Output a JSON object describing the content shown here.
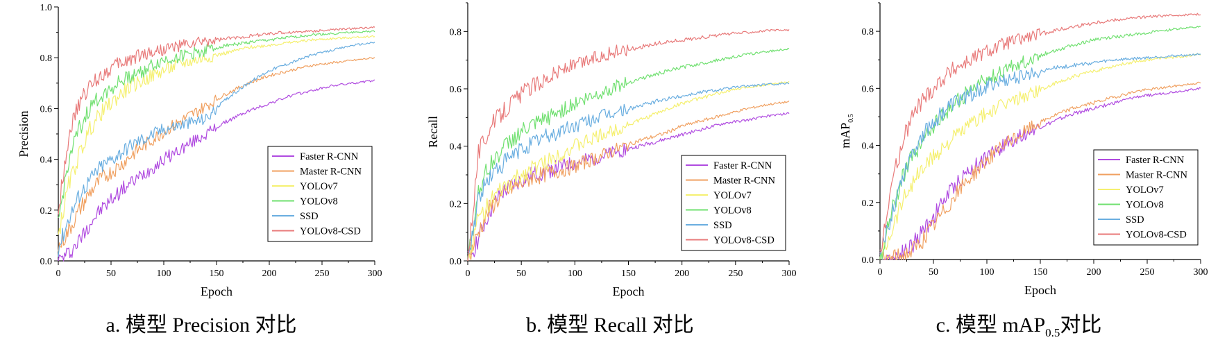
{
  "chart_data": [
    {
      "type": "line",
      "title": "",
      "xlabel": "Epoch",
      "ylabel": "Precision",
      "caption": "a. 模型 Precision 对比",
      "xlim": [
        0,
        300
      ],
      "ylim": [
        0,
        1.0
      ],
      "xticks": [
        "0",
        "50",
        "100",
        "150",
        "200",
        "250",
        "300"
      ],
      "yticks": [
        "0.0",
        "0.2",
        "0.4",
        "0.6",
        "0.8",
        "1.0"
      ],
      "legend_position": "bottom-right",
      "grid": false,
      "series": [
        {
          "name": "Faster R-CNN",
          "color": "#b04be0",
          "x": [
            0,
            10,
            20,
            30,
            40,
            50,
            60,
            70,
            80,
            90,
            100,
            120,
            140,
            160,
            180,
            200,
            220,
            240,
            260,
            280,
            300
          ],
          "y": [
            0.0,
            0.03,
            0.08,
            0.15,
            0.2,
            0.24,
            0.28,
            0.31,
            0.34,
            0.37,
            0.4,
            0.45,
            0.5,
            0.55,
            0.59,
            0.62,
            0.65,
            0.67,
            0.69,
            0.7,
            0.71
          ]
        },
        {
          "name": "Master R-CNN",
          "color": "#f0a060",
          "x": [
            0,
            10,
            20,
            30,
            40,
            50,
            60,
            70,
            80,
            90,
            100,
            120,
            140,
            160,
            180,
            200,
            220,
            240,
            260,
            280,
            300
          ],
          "y": [
            0.05,
            0.12,
            0.2,
            0.27,
            0.32,
            0.35,
            0.38,
            0.42,
            0.45,
            0.48,
            0.51,
            0.56,
            0.61,
            0.66,
            0.7,
            0.73,
            0.75,
            0.77,
            0.78,
            0.79,
            0.8
          ]
        },
        {
          "name": "YOLOv7",
          "color": "#f5f070",
          "x": [
            0,
            10,
            20,
            30,
            40,
            50,
            60,
            70,
            80,
            90,
            100,
            120,
            140,
            160,
            180,
            200,
            220,
            240,
            260,
            280,
            300
          ],
          "y": [
            0.1,
            0.3,
            0.42,
            0.52,
            0.58,
            0.62,
            0.66,
            0.69,
            0.71,
            0.73,
            0.75,
            0.78,
            0.8,
            0.82,
            0.84,
            0.85,
            0.86,
            0.87,
            0.875,
            0.88,
            0.885
          ]
        },
        {
          "name": "YOLOv8",
          "color": "#70e070",
          "x": [
            0,
            10,
            20,
            30,
            40,
            50,
            60,
            70,
            80,
            90,
            100,
            120,
            140,
            160,
            180,
            200,
            220,
            240,
            260,
            280,
            300
          ],
          "y": [
            0.15,
            0.4,
            0.52,
            0.6,
            0.65,
            0.68,
            0.71,
            0.73,
            0.75,
            0.77,
            0.79,
            0.81,
            0.83,
            0.85,
            0.86,
            0.87,
            0.88,
            0.89,
            0.895,
            0.9,
            0.905
          ]
        },
        {
          "name": "SSD",
          "color": "#6aaee0",
          "x": [
            0,
            10,
            20,
            30,
            40,
            50,
            60,
            70,
            80,
            90,
            100,
            120,
            140,
            160,
            180,
            200,
            220,
            240,
            260,
            280,
            300
          ],
          "y": [
            0.05,
            0.17,
            0.26,
            0.32,
            0.37,
            0.4,
            0.43,
            0.46,
            0.48,
            0.5,
            0.52,
            0.54,
            0.56,
            0.64,
            0.7,
            0.75,
            0.78,
            0.81,
            0.83,
            0.85,
            0.86
          ]
        },
        {
          "name": "YOLOv8-CSD",
          "color": "#e87a7a",
          "x": [
            0,
            10,
            20,
            30,
            40,
            50,
            60,
            70,
            80,
            90,
            100,
            120,
            140,
            160,
            180,
            200,
            220,
            240,
            260,
            280,
            300
          ],
          "y": [
            0.2,
            0.5,
            0.62,
            0.69,
            0.73,
            0.76,
            0.78,
            0.8,
            0.815,
            0.825,
            0.835,
            0.85,
            0.865,
            0.875,
            0.885,
            0.895,
            0.9,
            0.905,
            0.91,
            0.915,
            0.92
          ]
        }
      ]
    },
    {
      "type": "line",
      "title": "",
      "xlabel": "Epoch",
      "ylabel": "Recall",
      "caption": "b. 模型 Recall 对比",
      "xlim": [
        0,
        300
      ],
      "ylim": [
        0,
        0.9
      ],
      "xticks": [
        "0",
        "50",
        "100",
        "150",
        "200",
        "250",
        "300"
      ],
      "yticks": [
        "0.0",
        "0.2",
        "0.4",
        "0.6",
        "0.8"
      ],
      "legend_position": "bottom-right",
      "grid": false,
      "series": [
        {
          "name": "Faster R-CNN",
          "color": "#b04be0",
          "x": [
            0,
            10,
            20,
            30,
            40,
            50,
            60,
            70,
            80,
            90,
            100,
            120,
            140,
            160,
            180,
            200,
            220,
            240,
            260,
            280,
            300
          ],
          "y": [
            0.0,
            0.08,
            0.17,
            0.23,
            0.26,
            0.28,
            0.3,
            0.31,
            0.32,
            0.33,
            0.34,
            0.36,
            0.38,
            0.4,
            0.42,
            0.44,
            0.46,
            0.48,
            0.49,
            0.505,
            0.515
          ]
        },
        {
          "name": "Master R-CNN",
          "color": "#f0a060",
          "x": [
            0,
            10,
            20,
            30,
            40,
            50,
            60,
            70,
            80,
            90,
            100,
            120,
            140,
            160,
            180,
            200,
            220,
            240,
            260,
            280,
            300
          ],
          "y": [
            0.0,
            0.1,
            0.18,
            0.22,
            0.25,
            0.27,
            0.29,
            0.3,
            0.31,
            0.32,
            0.33,
            0.36,
            0.39,
            0.42,
            0.44,
            0.47,
            0.49,
            0.51,
            0.53,
            0.545,
            0.555
          ]
        },
        {
          "name": "YOLOv7",
          "color": "#f5f070",
          "x": [
            0,
            10,
            20,
            30,
            40,
            50,
            60,
            70,
            80,
            90,
            100,
            120,
            140,
            160,
            180,
            200,
            220,
            240,
            260,
            280,
            300
          ],
          "y": [
            0.0,
            0.15,
            0.2,
            0.24,
            0.27,
            0.3,
            0.32,
            0.34,
            0.36,
            0.38,
            0.4,
            0.43,
            0.46,
            0.49,
            0.52,
            0.55,
            0.57,
            0.59,
            0.605,
            0.615,
            0.625
          ]
        },
        {
          "name": "YOLOv8",
          "color": "#70e070",
          "x": [
            0,
            10,
            20,
            30,
            40,
            50,
            60,
            70,
            80,
            90,
            100,
            120,
            140,
            160,
            180,
            200,
            220,
            240,
            260,
            280,
            300
          ],
          "y": [
            0.0,
            0.25,
            0.33,
            0.38,
            0.42,
            0.45,
            0.47,
            0.49,
            0.51,
            0.53,
            0.55,
            0.58,
            0.61,
            0.635,
            0.655,
            0.675,
            0.69,
            0.705,
            0.72,
            0.73,
            0.74
          ]
        },
        {
          "name": "SSD",
          "color": "#6aaee0",
          "x": [
            0,
            10,
            20,
            30,
            40,
            50,
            60,
            70,
            80,
            90,
            100,
            120,
            140,
            160,
            180,
            200,
            220,
            240,
            260,
            280,
            300
          ],
          "y": [
            0.0,
            0.22,
            0.29,
            0.33,
            0.36,
            0.39,
            0.41,
            0.43,
            0.44,
            0.46,
            0.47,
            0.5,
            0.52,
            0.54,
            0.56,
            0.575,
            0.59,
            0.6,
            0.61,
            0.615,
            0.62
          ]
        },
        {
          "name": "YOLOv8-CSD",
          "color": "#e87a7a",
          "x": [
            0,
            10,
            20,
            30,
            40,
            50,
            60,
            70,
            80,
            90,
            100,
            120,
            140,
            160,
            180,
            200,
            220,
            240,
            260,
            280,
            300
          ],
          "y": [
            0.0,
            0.38,
            0.46,
            0.51,
            0.55,
            0.58,
            0.61,
            0.63,
            0.65,
            0.67,
            0.68,
            0.71,
            0.73,
            0.745,
            0.76,
            0.77,
            0.78,
            0.79,
            0.797,
            0.803,
            0.805
          ]
        }
      ]
    },
    {
      "type": "line",
      "title": "",
      "xlabel": "Epoch",
      "ylabel": "mAP",
      "ylabel_sub": "0.5",
      "caption": "c. 模型 mAP",
      "caption_sub": "0.5",
      "caption_suffix": "对比",
      "xlim": [
        0,
        300
      ],
      "ylim": [
        0,
        0.9
      ],
      "xticks": [
        "0",
        "50",
        "100",
        "150",
        "200",
        "250",
        "300"
      ],
      "yticks": [
        "0.0",
        "0.2",
        "0.4",
        "0.6",
        "0.8"
      ],
      "legend_position": "bottom-right",
      "grid": false,
      "series": [
        {
          "name": "Faster R-CNN",
          "color": "#b04be0",
          "x": [
            0,
            10,
            20,
            30,
            40,
            50,
            60,
            70,
            80,
            90,
            100,
            120,
            140,
            160,
            180,
            200,
            220,
            240,
            260,
            280,
            300
          ],
          "y": [
            0.0,
            0.0,
            0.02,
            0.05,
            0.1,
            0.15,
            0.21,
            0.26,
            0.3,
            0.33,
            0.36,
            0.41,
            0.45,
            0.48,
            0.51,
            0.53,
            0.55,
            0.57,
            0.58,
            0.59,
            0.6
          ]
        },
        {
          "name": "Master R-CNN",
          "color": "#f0a060",
          "x": [
            0,
            10,
            20,
            30,
            40,
            50,
            60,
            70,
            80,
            90,
            100,
            120,
            140,
            160,
            180,
            200,
            220,
            240,
            260,
            280,
            300
          ],
          "y": [
            0.0,
            0.0,
            0.01,
            0.03,
            0.07,
            0.12,
            0.17,
            0.22,
            0.27,
            0.31,
            0.35,
            0.41,
            0.46,
            0.5,
            0.53,
            0.55,
            0.57,
            0.59,
            0.6,
            0.61,
            0.62
          ]
        },
        {
          "name": "YOLOv7",
          "color": "#f5f070",
          "x": [
            0,
            10,
            20,
            30,
            40,
            50,
            60,
            70,
            80,
            90,
            100,
            120,
            140,
            160,
            180,
            200,
            220,
            240,
            260,
            280,
            300
          ],
          "y": [
            0.0,
            0.1,
            0.2,
            0.27,
            0.32,
            0.36,
            0.4,
            0.43,
            0.46,
            0.49,
            0.51,
            0.55,
            0.58,
            0.61,
            0.64,
            0.66,
            0.68,
            0.695,
            0.705,
            0.71,
            0.72
          ]
        },
        {
          "name": "YOLOv8",
          "color": "#70e070",
          "x": [
            0,
            10,
            20,
            30,
            40,
            50,
            60,
            70,
            80,
            90,
            100,
            120,
            140,
            160,
            180,
            200,
            220,
            240,
            260,
            280,
            300
          ],
          "y": [
            0.0,
            0.15,
            0.28,
            0.36,
            0.42,
            0.47,
            0.51,
            0.55,
            0.58,
            0.61,
            0.63,
            0.67,
            0.7,
            0.73,
            0.75,
            0.77,
            0.78,
            0.79,
            0.8,
            0.81,
            0.815
          ]
        },
        {
          "name": "SSD",
          "color": "#6aaee0",
          "x": [
            0,
            10,
            20,
            30,
            40,
            50,
            60,
            70,
            80,
            90,
            100,
            120,
            140,
            160,
            180,
            200,
            220,
            240,
            260,
            280,
            300
          ],
          "y": [
            0.0,
            0.15,
            0.28,
            0.38,
            0.44,
            0.48,
            0.52,
            0.55,
            0.57,
            0.59,
            0.61,
            0.63,
            0.65,
            0.67,
            0.68,
            0.69,
            0.7,
            0.705,
            0.71,
            0.715,
            0.72
          ]
        },
        {
          "name": "YOLOv8-CSD",
          "color": "#e87a7a",
          "x": [
            0,
            10,
            20,
            30,
            40,
            50,
            60,
            70,
            80,
            90,
            100,
            120,
            140,
            160,
            180,
            200,
            220,
            240,
            260,
            280,
            300
          ],
          "y": [
            0.0,
            0.25,
            0.4,
            0.5,
            0.56,
            0.6,
            0.64,
            0.67,
            0.69,
            0.71,
            0.73,
            0.76,
            0.78,
            0.8,
            0.815,
            0.83,
            0.84,
            0.848,
            0.853,
            0.857,
            0.86
          ]
        }
      ]
    }
  ]
}
